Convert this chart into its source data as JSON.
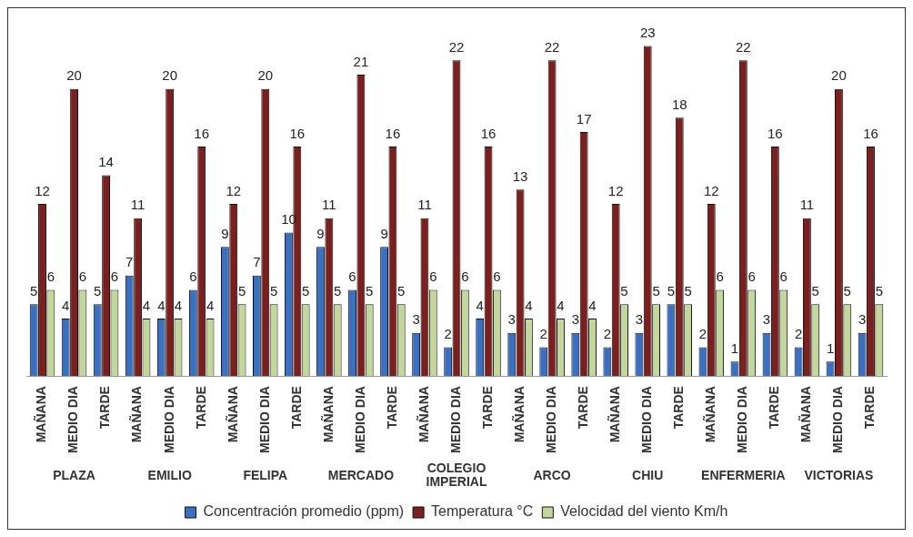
{
  "chart_data": {
    "type": "bar",
    "categories": [
      "MAÑANA",
      "MEDIO DIA",
      "TARDE",
      "MAÑANA",
      "MEDIO DIA",
      "TARDE",
      "MAÑANA",
      "MEDIO DIA",
      "TARDE",
      "MAÑANA",
      "MEDIO DIA",
      "TARDE",
      "MAÑANA",
      "MEDIO DIA",
      "TARDE",
      "MAÑANA",
      "MEDIO DIA",
      "TARDE",
      "MAÑANA",
      "MEDIO DIA",
      "TARDE",
      "MAÑANA",
      "MEDIO DIA",
      "TARDE",
      "MAÑANA",
      "MEDIO DIA",
      "TARDE"
    ],
    "annotations": [
      "PLAZA",
      "EMILIO",
      "FELIPA",
      "MERCADO",
      "COLEGIO IMPERIAL",
      "ARCO",
      "CHIU",
      "ENFERMERIA",
      "VICTORIAS"
    ],
    "series": [
      {
        "name": "Concentración promedio (ppm)",
        "color": "#3a70c4",
        "values": [
          5,
          4,
          5,
          7,
          4,
          6,
          9,
          7,
          10,
          9,
          6,
          9,
          3,
          2,
          4,
          3,
          2,
          3,
          2,
          3,
          5,
          2,
          1,
          3,
          2,
          1,
          3
        ]
      },
      {
        "name": "Temperatura °C",
        "color": "#7b1f1f",
        "values": [
          12,
          20,
          14,
          11,
          20,
          16,
          12,
          20,
          16,
          11,
          21,
          16,
          11,
          22,
          16,
          13,
          22,
          17,
          12,
          23,
          18,
          12,
          22,
          16,
          11,
          20,
          16
        ]
      },
      {
        "name": "Velocidad del viento Km/h",
        "color": "#c3d69b",
        "values": [
          6,
          6,
          6,
          4,
          4,
          4,
          5,
          5,
          5,
          5,
          5,
          5,
          6,
          6,
          6,
          4,
          4,
          4,
          5,
          5,
          5,
          6,
          6,
          6,
          5,
          5,
          5
        ]
      }
    ],
    "data_labels": true,
    "grid": false,
    "legend": "bottom"
  }
}
